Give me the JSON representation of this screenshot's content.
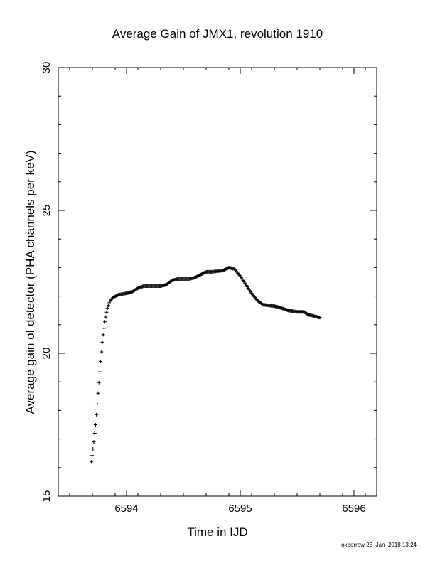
{
  "chart_data": {
    "type": "scatter",
    "title": "Average Gain of JMX1, revolution 1910",
    "xlabel": "Time in IJD",
    "ylabel": "Average gain of detector (PHA channels per keV)",
    "xlim": [
      6593.4,
      6596.2
    ],
    "ylim": [
      15,
      30
    ],
    "xticks": [
      6594,
      6595,
      6596
    ],
    "yticks": [
      15,
      20,
      25,
      30
    ],
    "grid": false,
    "marker": "+",
    "footer": "oxborrow 23–Jan–2018 13:24",
    "curve": [
      [
        6593.69,
        16.2
      ],
      [
        6593.71,
        16.8
      ],
      [
        6593.73,
        17.6
      ],
      [
        6593.75,
        18.6
      ],
      [
        6593.77,
        19.6
      ],
      [
        6593.79,
        20.5
      ],
      [
        6593.81,
        21.1
      ],
      [
        6593.83,
        21.55
      ],
      [
        6593.85,
        21.8
      ],
      [
        6593.88,
        21.95
      ],
      [
        6593.93,
        22.05
      ],
      [
        6594.0,
        22.1
      ],
      [
        6594.05,
        22.15
      ],
      [
        6594.1,
        22.28
      ],
      [
        6594.15,
        22.35
      ],
      [
        6594.2,
        22.35
      ],
      [
        6594.3,
        22.35
      ],
      [
        6594.35,
        22.4
      ],
      [
        6594.4,
        22.55
      ],
      [
        6594.45,
        22.6
      ],
      [
        6594.55,
        22.6
      ],
      [
        6594.6,
        22.65
      ],
      [
        6594.65,
        22.75
      ],
      [
        6594.7,
        22.85
      ],
      [
        6594.75,
        22.85
      ],
      [
        6594.85,
        22.9
      ],
      [
        6594.9,
        23.0
      ],
      [
        6594.95,
        22.95
      ],
      [
        6595.0,
        22.7
      ],
      [
        6595.05,
        22.4
      ],
      [
        6595.1,
        22.1
      ],
      [
        6595.15,
        21.85
      ],
      [
        6595.2,
        21.7
      ],
      [
        6595.3,
        21.65
      ],
      [
        6595.35,
        21.6
      ],
      [
        6595.42,
        21.5
      ],
      [
        6595.5,
        21.45
      ],
      [
        6595.56,
        21.45
      ],
      [
        6595.6,
        21.35
      ],
      [
        6595.7,
        21.25
      ]
    ],
    "series": [
      {
        "color": "#000000"
      }
    ]
  }
}
